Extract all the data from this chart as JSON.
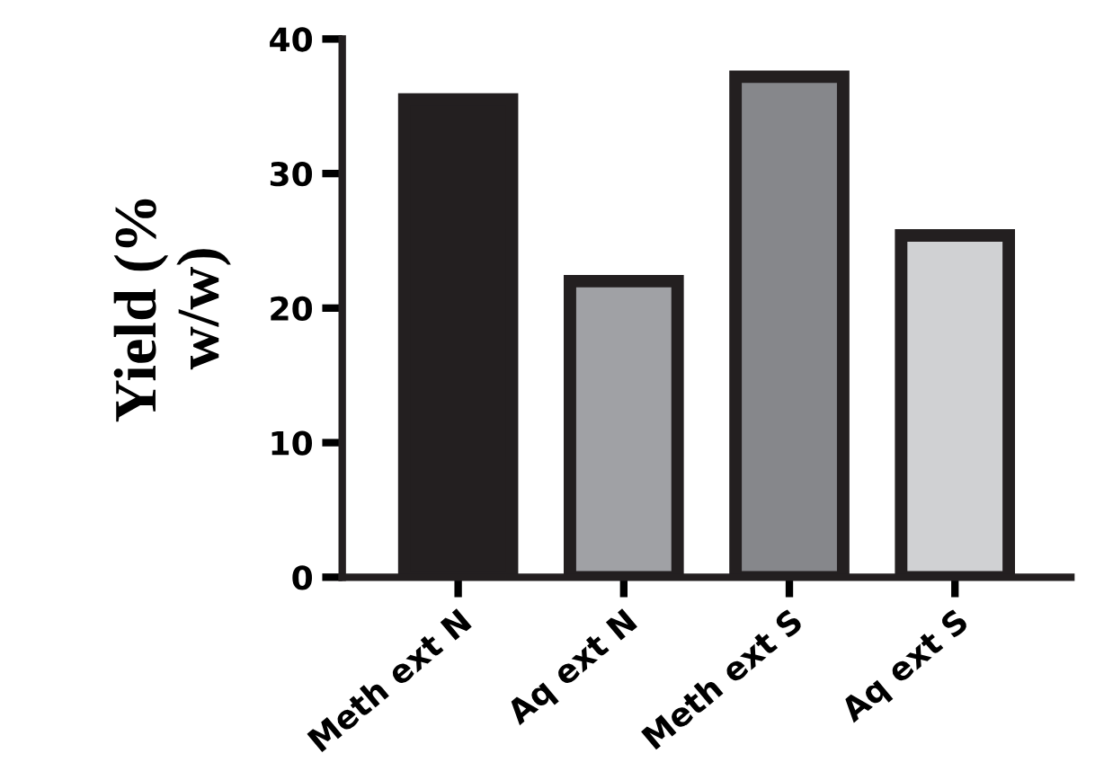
{
  "chart_data": {
    "type": "bar",
    "ylabel": "Yield (%\nw/w)",
    "categories": [
      "Meth ext N",
      "Aq ext N",
      "Meth ext S",
      "Aq ext S"
    ],
    "values": [
      35.5,
      22.0,
      37.2,
      25.4
    ],
    "colors": [
      "#231f20",
      "#a0a1a5",
      "#86878b",
      "#d0d1d3"
    ],
    "ylim": [
      0,
      40
    ],
    "yticks": [
      0,
      10,
      20,
      30,
      40
    ],
    "grid": false
  }
}
